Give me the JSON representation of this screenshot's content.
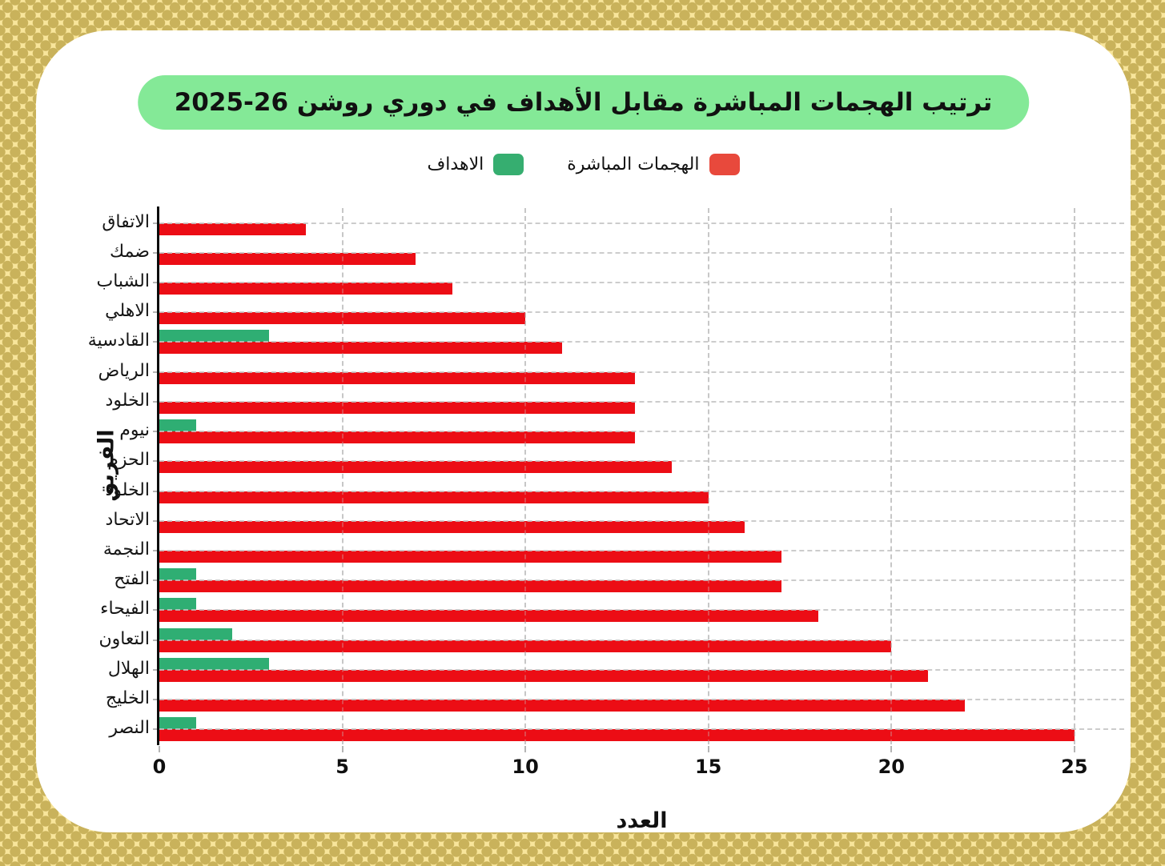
{
  "page": {
    "background_color": "#F8E59B",
    "dot_color": "#C9B25B",
    "card_color": "#FFFFFF"
  },
  "title": {
    "text": "ترتيب الهجمات المباشرة مقابل الأهداف في دوري روشن 26-2025",
    "pill_color": "#84E997"
  },
  "legend": {
    "items": [
      {
        "label": "الهجمات المباشرة",
        "color": "#E8493C"
      },
      {
        "label": "الاهداف",
        "color": "#36AE70"
      }
    ]
  },
  "chart_data": {
    "type": "bar",
    "orientation": "horizontal",
    "title": "ترتيب الهجمات المباشرة مقابل الأهداف في دوري روشن 26-2025",
    "xlabel": "العدد",
    "ylabel": "الفريق",
    "categories": [
      "الاتفاق",
      "ضمك",
      "الشباب",
      "الاهلي",
      "القادسية",
      "الرياض",
      "الخلود",
      "نيوم",
      "الحزم",
      "الخلود",
      "الاتحاد",
      "النجمة",
      "الفتح",
      "الفيحاء",
      "التعاون",
      "الهلال",
      "الخليج",
      "النصر"
    ],
    "series": [
      {
        "name": "الهجمات المباشرة",
        "color": "#EC0D15",
        "values": [
          4,
          7,
          8,
          10,
          11,
          13,
          13,
          13,
          14,
          15,
          16,
          17,
          17,
          18,
          20,
          21,
          22,
          25
        ]
      },
      {
        "name": "الاهداف",
        "color": "#2FAE73",
        "values": [
          0,
          0,
          0,
          0,
          3,
          0,
          0,
          1,
          0,
          0,
          0,
          0,
          1,
          1,
          2,
          3,
          0,
          1
        ]
      }
    ],
    "xticks": [
      0,
      5,
      10,
      15,
      20,
      25
    ],
    "xlim": [
      0,
      26.36
    ],
    "grid": true,
    "legend_position": "top center"
  }
}
